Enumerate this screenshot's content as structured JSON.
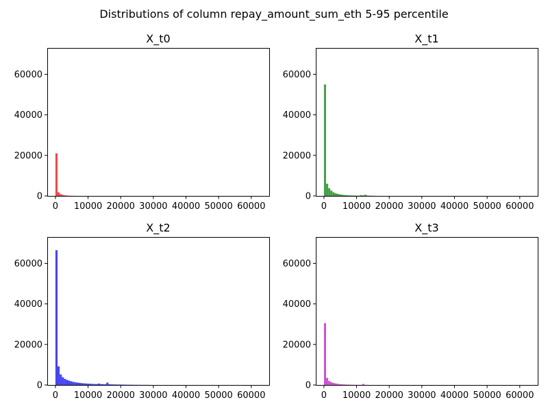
{
  "figure": {
    "suptitle": "Distributions of column repay_amount_sum_eth 5-95 percentile"
  },
  "chart_data": [
    {
      "type": "bar",
      "subtype": "histogram",
      "title": "X_t0",
      "color": "#e8403f",
      "xlabel": "",
      "ylabel": "",
      "xlim": [
        -2500,
        65500
      ],
      "ylim": [
        0,
        73000
      ],
      "xticks": [
        0,
        10000,
        20000,
        30000,
        40000,
        50000,
        60000
      ],
      "yticks": [
        0,
        20000,
        40000,
        60000
      ],
      "bin_width": 650,
      "bin_start": 0,
      "values": [
        21000,
        1800,
        900,
        500,
        300,
        180,
        110,
        70,
        50,
        30
      ]
    },
    {
      "type": "bar",
      "subtype": "histogram",
      "title": "X_t1",
      "color": "#3f9a3f",
      "xlabel": "",
      "ylabel": "",
      "xlim": [
        -2500,
        65500
      ],
      "ylim": [
        0,
        73000
      ],
      "xticks": [
        0,
        10000,
        20000,
        30000,
        40000,
        50000,
        60000
      ],
      "yticks": [
        0,
        20000,
        40000,
        60000
      ],
      "bin_width": 650,
      "bin_start": 0,
      "values": [
        55000,
        6000,
        3800,
        2600,
        1800,
        1300,
        1000,
        750,
        600,
        480,
        380,
        300,
        250,
        220,
        180,
        150,
        130,
        400,
        250,
        600,
        180,
        120,
        90,
        70,
        50
      ]
    },
    {
      "type": "bar",
      "subtype": "histogram",
      "title": "X_t2",
      "color": "#3b3bf0",
      "xlabel": "",
      "ylabel": "",
      "xlim": [
        -2500,
        65500
      ],
      "ylim": [
        0,
        73000
      ],
      "xticks": [
        0,
        10000,
        20000,
        30000,
        40000,
        50000,
        60000
      ],
      "yticks": [
        0,
        20000,
        40000,
        60000
      ],
      "bin_width": 650,
      "bin_start": 0,
      "values": [
        66500,
        9200,
        5200,
        3800,
        3000,
        2500,
        2100,
        1800,
        1500,
        1300,
        1150,
        1000,
        900,
        800,
        720,
        650,
        580,
        520,
        480,
        440,
        700,
        420,
        380,
        350,
        1200,
        320,
        290,
        260,
        240,
        220,
        200,
        180,
        160,
        140,
        120,
        110,
        100,
        90,
        80,
        70,
        60,
        55,
        50,
        45,
        40
      ]
    },
    {
      "type": "bar",
      "subtype": "histogram",
      "title": "X_t3",
      "color": "#c94bd1",
      "xlabel": "",
      "ylabel": "",
      "xlim": [
        -2500,
        65500
      ],
      "ylim": [
        0,
        73000
      ],
      "xticks": [
        0,
        10000,
        20000,
        30000,
        40000,
        50000,
        60000
      ],
      "yticks": [
        0,
        20000,
        40000,
        60000
      ],
      "bin_width": 650,
      "bin_start": 0,
      "values": [
        30500,
        3500,
        2000,
        1400,
        1000,
        750,
        550,
        420,
        320,
        250,
        200,
        160,
        130,
        110,
        90,
        70,
        60,
        50,
        500,
        60,
        40
      ]
    }
  ]
}
